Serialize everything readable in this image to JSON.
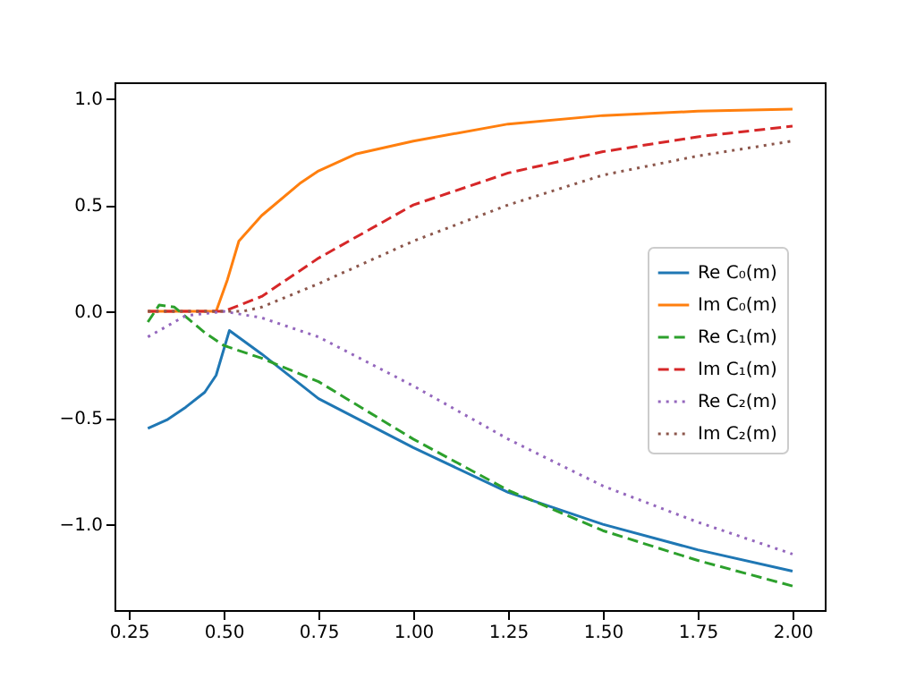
{
  "chart_data": {
    "type": "line",
    "legend": "right",
    "grid": false,
    "marker": "none",
    "xlim": [
      0.212,
      2.085
    ],
    "ylim": [
      -1.403,
      1.076
    ],
    "xticks": [
      {
        "value": 0.25,
        "label": "0.25"
      },
      {
        "value": 0.5,
        "label": "0.50"
      },
      {
        "value": 0.75,
        "label": "0.75"
      },
      {
        "value": 1.0,
        "label": "1.00"
      },
      {
        "value": 1.25,
        "label": "1.25"
      },
      {
        "value": 1.5,
        "label": "1.50"
      },
      {
        "value": 1.75,
        "label": "1.75"
      },
      {
        "value": 2.0,
        "label": "2.00"
      }
    ],
    "yticks": [
      {
        "value": -1.0,
        "label": "−1.0"
      },
      {
        "value": -0.5,
        "label": "−0.5"
      },
      {
        "value": 0.0,
        "label": "0.0"
      },
      {
        "value": 0.5,
        "label": "0.5"
      },
      {
        "value": 1.0,
        "label": "1.0"
      }
    ],
    "series": [
      {
        "name": "Re C₀(m)",
        "color": "#1f77b4",
        "line_style": "solid",
        "x": [
          0.3,
          0.35,
          0.4,
          0.45,
          0.48,
          0.515,
          0.6,
          0.75,
          1.0,
          1.25,
          1.5,
          1.75,
          2.0
        ],
        "values": [
          -0.55,
          -0.51,
          -0.45,
          -0.38,
          -0.3,
          -0.09,
          -0.2,
          -0.41,
          -0.64,
          -0.85,
          -1.0,
          -1.12,
          -1.22
        ]
      },
      {
        "name": "Im C₀(m)",
        "color": "#ff7f0e",
        "line_style": "solid",
        "x": [
          0.3,
          0.4,
          0.48,
          0.51,
          0.54,
          0.6,
          0.7,
          0.75,
          0.85,
          1.0,
          1.25,
          1.5,
          1.75,
          2.0
        ],
        "values": [
          0.0,
          0.0,
          0.0,
          0.15,
          0.33,
          0.45,
          0.6,
          0.66,
          0.74,
          0.8,
          0.88,
          0.92,
          0.94,
          0.95
        ]
      },
      {
        "name": " Re C₁(m)",
        "color": "#2ca02c",
        "line_style": "dashed",
        "x": [
          0.3,
          0.33,
          0.37,
          0.45,
          0.5,
          0.6,
          0.75,
          1.0,
          1.25,
          1.5,
          1.75,
          2.0
        ],
        "values": [
          -0.05,
          0.03,
          0.02,
          -0.1,
          -0.16,
          -0.22,
          -0.33,
          -0.6,
          -0.84,
          -1.03,
          -1.17,
          -1.29
        ]
      },
      {
        "name": "Im C₁(m)",
        "color": "#d62728",
        "line_style": "dashed",
        "x": [
          0.3,
          0.4,
          0.5,
          0.6,
          0.75,
          1.0,
          1.25,
          1.5,
          1.75,
          2.0
        ],
        "values": [
          0.0,
          0.0,
          0.0,
          0.07,
          0.25,
          0.5,
          0.65,
          0.75,
          0.82,
          0.87
        ]
      },
      {
        "name": "Re C₂(m)",
        "color": "#9467bd",
        "line_style": "dotted",
        "x": [
          0.3,
          0.4,
          0.5,
          0.6,
          0.75,
          1.0,
          1.25,
          1.5,
          1.75,
          2.0
        ],
        "values": [
          -0.12,
          -0.02,
          0.0,
          -0.03,
          -0.12,
          -0.35,
          -0.6,
          -0.82,
          -0.99,
          -1.14
        ]
      },
      {
        "name": "Im C₂(m)",
        "color": "#8c564b",
        "line_style": "dotted",
        "x": [
          0.3,
          0.4,
          0.55,
          0.6,
          0.75,
          1.0,
          1.25,
          1.5,
          1.75,
          2.0
        ],
        "values": [
          0.0,
          0.0,
          0.0,
          0.02,
          0.13,
          0.33,
          0.5,
          0.64,
          0.73,
          0.8
        ]
      }
    ]
  }
}
